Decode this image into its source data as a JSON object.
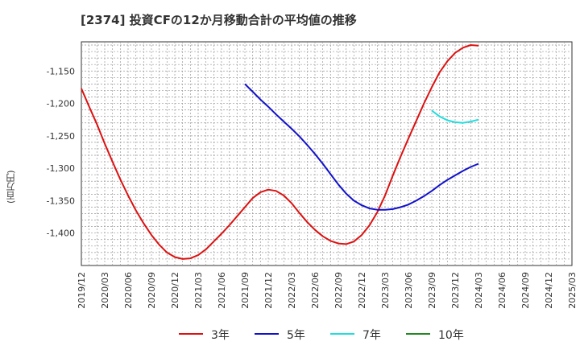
{
  "chart_data": {
    "type": "line",
    "title": "[2374]  投資CFの12か月移動合計の平均値の推移",
    "ylabel": "(百万円)",
    "xlabel": "",
    "ylim": [
      -1450,
      -1105
    ],
    "yticks": [
      -1150,
      -1200,
      -1250,
      -1300,
      -1350,
      -1400
    ],
    "ytick_labels": [
      "-1,150",
      "-1,200",
      "-1,250",
      "-1,300",
      "-1,350",
      "-1,400"
    ],
    "x_tick_labels": [
      "2019/12",
      "2020/03",
      "2020/06",
      "2020/09",
      "2020/12",
      "2021/03",
      "2021/06",
      "2021/09",
      "2021/12",
      "2022/03",
      "2022/06",
      "2022/09",
      "2022/12",
      "2023/03",
      "2023/06",
      "2023/09",
      "2023/12",
      "2024/03",
      "2024/06",
      "2024/09",
      "2024/12",
      "2025/03"
    ],
    "grid": true,
    "legend_position": "bottom",
    "series": [
      {
        "name": "3年",
        "color": "#dd1111",
        "points": [
          [
            "2019/12",
            -1177
          ],
          [
            "2020/01",
            -1205
          ],
          [
            "2020/02",
            -1232
          ],
          [
            "2020/03",
            -1262
          ],
          [
            "2020/04",
            -1290
          ],
          [
            "2020/05",
            -1317
          ],
          [
            "2020/06",
            -1342
          ],
          [
            "2020/07",
            -1365
          ],
          [
            "2020/08",
            -1385
          ],
          [
            "2020/09",
            -1403
          ],
          [
            "2020/10",
            -1418
          ],
          [
            "2020/11",
            -1430
          ],
          [
            "2020/12",
            -1437
          ],
          [
            "2021/01",
            -1440
          ],
          [
            "2021/02",
            -1439
          ],
          [
            "2021/03",
            -1434
          ],
          [
            "2021/04",
            -1425
          ],
          [
            "2021/05",
            -1413
          ],
          [
            "2021/06",
            -1401
          ],
          [
            "2021/07",
            -1388
          ],
          [
            "2021/08",
            -1374
          ],
          [
            "2021/09",
            -1360
          ],
          [
            "2021/10",
            -1346
          ],
          [
            "2021/11",
            -1337
          ],
          [
            "2021/12",
            -1333
          ],
          [
            "2022/01",
            -1335
          ],
          [
            "2022/02",
            -1342
          ],
          [
            "2022/03",
            -1354
          ],
          [
            "2022/04",
            -1369
          ],
          [
            "2022/05",
            -1383
          ],
          [
            "2022/06",
            -1395
          ],
          [
            "2022/07",
            -1405
          ],
          [
            "2022/08",
            -1412
          ],
          [
            "2022/09",
            -1416
          ],
          [
            "2022/10",
            -1417
          ],
          [
            "2022/11",
            -1413
          ],
          [
            "2022/12",
            -1403
          ],
          [
            "2023/01",
            -1388
          ],
          [
            "2023/02",
            -1368
          ],
          [
            "2023/03",
            -1342
          ],
          [
            "2023/04",
            -1311
          ],
          [
            "2023/05",
            -1282
          ],
          [
            "2023/06",
            -1254
          ],
          [
            "2023/07",
            -1227
          ],
          [
            "2023/08",
            -1200
          ],
          [
            "2023/09",
            -1175
          ],
          [
            "2023/10",
            -1152
          ],
          [
            "2023/11",
            -1135
          ],
          [
            "2023/12",
            -1122
          ],
          [
            "2024/01",
            -1114
          ],
          [
            "2024/02",
            -1110
          ],
          [
            "2024/03",
            -1111
          ]
        ]
      },
      {
        "name": "5年",
        "color": "#1111cc",
        "points": [
          [
            "2021/09",
            -1170
          ],
          [
            "2021/10",
            -1182
          ],
          [
            "2021/11",
            -1194
          ],
          [
            "2021/12",
            -1205
          ],
          [
            "2022/01",
            -1217
          ],
          [
            "2022/02",
            -1228
          ],
          [
            "2022/03",
            -1239
          ],
          [
            "2022/04",
            -1251
          ],
          [
            "2022/05",
            -1264
          ],
          [
            "2022/06",
            -1278
          ],
          [
            "2022/07",
            -1293
          ],
          [
            "2022/08",
            -1309
          ],
          [
            "2022/09",
            -1325
          ],
          [
            "2022/10",
            -1339
          ],
          [
            "2022/11",
            -1350
          ],
          [
            "2022/12",
            -1357
          ],
          [
            "2023/01",
            -1362
          ],
          [
            "2023/02",
            -1364
          ],
          [
            "2023/03",
            -1364
          ],
          [
            "2023/04",
            -1363
          ],
          [
            "2023/05",
            -1360
          ],
          [
            "2023/06",
            -1356
          ],
          [
            "2023/07",
            -1350
          ],
          [
            "2023/08",
            -1343
          ],
          [
            "2023/09",
            -1335
          ],
          [
            "2023/10",
            -1326
          ],
          [
            "2023/11",
            -1318
          ],
          [
            "2023/12",
            -1311
          ],
          [
            "2024/01",
            -1304
          ],
          [
            "2024/02",
            -1298
          ],
          [
            "2024/03",
            -1293
          ]
        ]
      },
      {
        "name": "7年",
        "color": "#22dddd",
        "points": [
          [
            "2023/09",
            -1211
          ],
          [
            "2023/10",
            -1220
          ],
          [
            "2023/11",
            -1226
          ],
          [
            "2023/12",
            -1229
          ],
          [
            "2024/01",
            -1230
          ],
          [
            "2024/02",
            -1228
          ],
          [
            "2024/03",
            -1225
          ]
        ]
      },
      {
        "name": "10年",
        "color": "#228822",
        "points": []
      }
    ]
  }
}
